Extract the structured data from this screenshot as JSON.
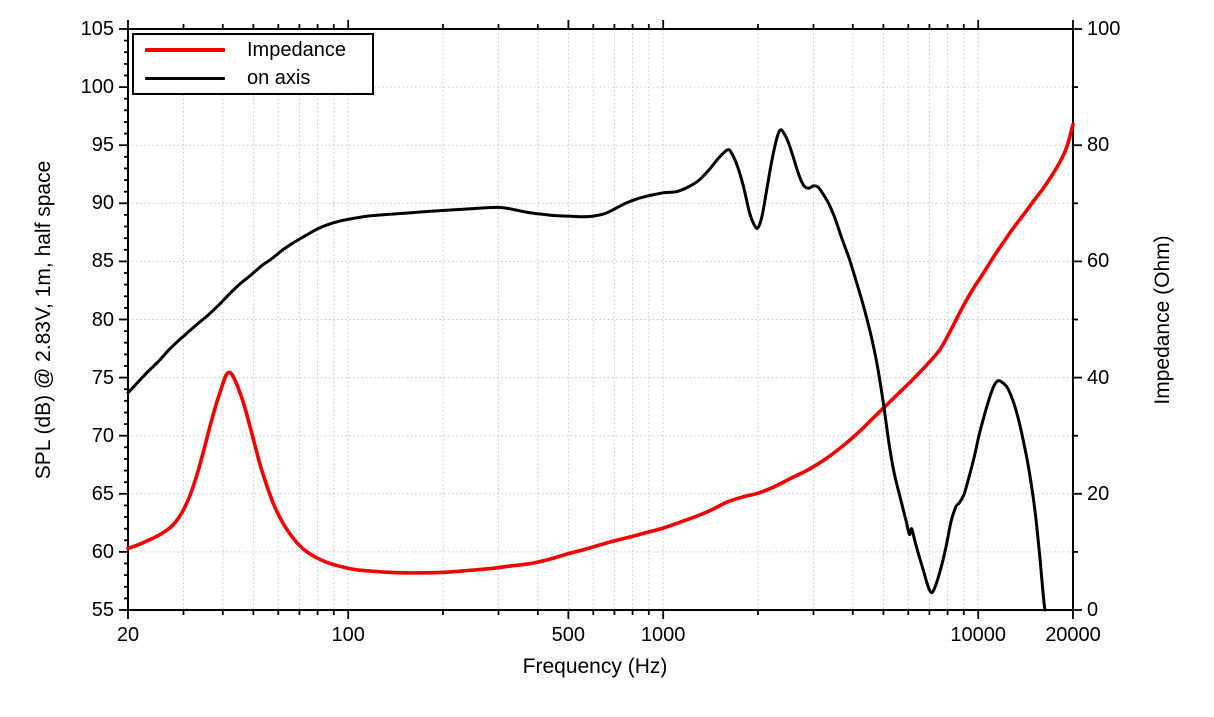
{
  "chart_data": {
    "type": "line",
    "xlabel": "Frequency (Hz)",
    "ylabel_left": "SPL (dB) @ 2.83V, 1m, half space",
    "ylabel_right": "Impedance (Ohm)",
    "x_scale": "log",
    "x_range": [
      20,
      20000
    ],
    "y_left_range": [
      55,
      105
    ],
    "y_right_range": [
      0,
      100
    ],
    "grid": {
      "on": true,
      "color": "#c9c9c9",
      "style": "dotted"
    },
    "x_major_ticks": [
      20,
      100,
      500,
      1000,
      10000,
      20000
    ],
    "x_major_tick_labels": [
      "20",
      "100",
      "500",
      "1000",
      "10000",
      "20000"
    ],
    "x_minor_ticks": [
      30,
      40,
      50,
      60,
      70,
      80,
      90,
      200,
      300,
      400,
      600,
      700,
      800,
      900,
      2000,
      3000,
      4000,
      5000,
      6000,
      7000,
      8000,
      9000
    ],
    "x_gridlines": [
      30,
      40,
      50,
      60,
      70,
      80,
      90,
      100,
      200,
      300,
      400,
      500,
      600,
      700,
      800,
      900,
      1000,
      2000,
      3000,
      4000,
      5000,
      6000,
      7000,
      8000,
      9000,
      10000
    ],
    "y_left_major_ticks": [
      55,
      60,
      65,
      70,
      75,
      80,
      85,
      90,
      95,
      100,
      105
    ],
    "y_left_tick_labels": [
      "55",
      "60",
      "65",
      "70",
      "75",
      "80",
      "85",
      "90",
      "95",
      "100",
      "105"
    ],
    "y_left_minor_step": 1,
    "y_left_gridlines": [
      60,
      65,
      70,
      75,
      80,
      85,
      90,
      95,
      100
    ],
    "y_right_major_ticks": [
      0,
      20,
      40,
      60,
      80,
      100
    ],
    "y_right_tick_labels": [
      "0",
      "20",
      "40",
      "60",
      "80",
      "100"
    ],
    "y_right_minor_step": 10,
    "legend": {
      "position": "top-left",
      "entries": [
        {
          "label": "Impedance",
          "color": "#f40000"
        },
        {
          "label": "on axis",
          "color": "#000000"
        }
      ]
    },
    "series": [
      {
        "name": "Impedance",
        "axis": "right",
        "color": "#f40000",
        "linewidth": 3.6,
        "points": [
          [
            20,
            10.6
          ],
          [
            21.5,
            11.2
          ],
          [
            23,
            11.9
          ],
          [
            24.5,
            12.6
          ],
          [
            26,
            13.4
          ],
          [
            27.5,
            14.4
          ],
          [
            29,
            15.9
          ],
          [
            30.5,
            18.0
          ],
          [
            32,
            20.8
          ],
          [
            33.5,
            24.2
          ],
          [
            35,
            28.0
          ],
          [
            36.5,
            31.8
          ],
          [
            38,
            35.2
          ],
          [
            39.5,
            38.0
          ],
          [
            40.8,
            40.2
          ],
          [
            41.8,
            40.9
          ],
          [
            42.8,
            40.5
          ],
          [
            44,
            39.2
          ],
          [
            45.5,
            37.2
          ],
          [
            47,
            34.8
          ],
          [
            49,
            31.2
          ],
          [
            51,
            27.6
          ],
          [
            53,
            24.3
          ],
          [
            55.5,
            21.0
          ],
          [
            58,
            18.2
          ],
          [
            61,
            15.7
          ],
          [
            64,
            13.8
          ],
          [
            68,
            11.9
          ],
          [
            72,
            10.5
          ],
          [
            77,
            9.4
          ],
          [
            83,
            8.5
          ],
          [
            90,
            7.8
          ],
          [
            98,
            7.3
          ],
          [
            107,
            6.9
          ],
          [
            118,
            6.7
          ],
          [
            132,
            6.5
          ],
          [
            150,
            6.4
          ],
          [
            175,
            6.4
          ],
          [
            205,
            6.5
          ],
          [
            240,
            6.8
          ],
          [
            280,
            7.1
          ],
          [
            330,
            7.6
          ],
          [
            380,
            8.0
          ],
          [
            440,
            8.8
          ],
          [
            500,
            9.7
          ],
          [
            560,
            10.4
          ],
          [
            630,
            11.2
          ],
          [
            700,
            11.9
          ],
          [
            790,
            12.6
          ],
          [
            880,
            13.3
          ],
          [
            1000,
            14.1
          ],
          [
            1130,
            15.1
          ],
          [
            1270,
            16.1
          ],
          [
            1420,
            17.2
          ],
          [
            1600,
            18.6
          ],
          [
            1800,
            19.5
          ],
          [
            2000,
            20.1
          ],
          [
            2250,
            21.2
          ],
          [
            2550,
            22.7
          ],
          [
            2900,
            24.2
          ],
          [
            3300,
            26.1
          ],
          [
            3750,
            28.4
          ],
          [
            4250,
            31.0
          ],
          [
            4800,
            33.8
          ],
          [
            5400,
            36.5
          ],
          [
            6100,
            39.3
          ],
          [
            6900,
            42.3
          ],
          [
            7600,
            45.0
          ],
          [
            8300,
            48.8
          ],
          [
            9000,
            52.5
          ],
          [
            9700,
            55.5
          ],
          [
            10400,
            58.0
          ],
          [
            11200,
            60.8
          ],
          [
            12100,
            63.5
          ],
          [
            13000,
            65.9
          ],
          [
            14000,
            68.2
          ],
          [
            15000,
            70.4
          ],
          [
            16000,
            72.4
          ],
          [
            17000,
            74.5
          ],
          [
            18000,
            76.7
          ],
          [
            18800,
            78.7
          ],
          [
            19400,
            80.8
          ],
          [
            20000,
            83.6
          ]
        ]
      },
      {
        "name": "on axis",
        "axis": "left",
        "color": "#000000",
        "linewidth": 3,
        "points": [
          [
            20,
            73.7
          ],
          [
            21,
            74.3
          ],
          [
            22,
            74.9
          ],
          [
            23.5,
            75.7
          ],
          [
            25,
            76.4
          ],
          [
            27,
            77.4
          ],
          [
            29,
            78.2
          ],
          [
            31,
            78.9
          ],
          [
            33.5,
            79.7
          ],
          [
            36,
            80.4
          ],
          [
            39,
            81.3
          ],
          [
            42,
            82.2
          ],
          [
            45.5,
            83.1
          ],
          [
            49,
            83.8
          ],
          [
            53,
            84.6
          ],
          [
            57,
            85.2
          ],
          [
            62,
            86.0
          ],
          [
            67,
            86.6
          ],
          [
            73,
            87.2
          ],
          [
            80,
            87.8
          ],
          [
            87,
            88.2
          ],
          [
            95,
            88.5
          ],
          [
            104,
            88.7
          ],
          [
            115,
            88.9
          ],
          [
            128,
            89.0
          ],
          [
            143,
            89.1
          ],
          [
            160,
            89.2
          ],
          [
            180,
            89.3
          ],
          [
            205,
            89.4
          ],
          [
            235,
            89.5
          ],
          [
            270,
            89.6
          ],
          [
            300,
            89.65
          ],
          [
            330,
            89.5
          ],
          [
            365,
            89.25
          ],
          [
            400,
            89.1
          ],
          [
            450,
            88.95
          ],
          [
            500,
            88.9
          ],
          [
            550,
            88.85
          ],
          [
            600,
            88.9
          ],
          [
            650,
            89.1
          ],
          [
            700,
            89.5
          ],
          [
            760,
            90.0
          ],
          [
            830,
            90.4
          ],
          [
            900,
            90.65
          ],
          [
            1000,
            90.9
          ],
          [
            1100,
            91.0
          ],
          [
            1200,
            91.4
          ],
          [
            1300,
            92.0
          ],
          [
            1400,
            92.9
          ],
          [
            1500,
            93.9
          ],
          [
            1600,
            94.6
          ],
          [
            1650,
            94.3
          ],
          [
            1720,
            93.2
          ],
          [
            1800,
            91.4
          ],
          [
            1880,
            89.2
          ],
          [
            1950,
            88.1
          ],
          [
            2000,
            87.9
          ],
          [
            2060,
            88.9
          ],
          [
            2130,
            91.1
          ],
          [
            2200,
            93.3
          ],
          [
            2280,
            95.3
          ],
          [
            2350,
            96.3
          ],
          [
            2420,
            96.0
          ],
          [
            2500,
            95.2
          ],
          [
            2600,
            93.8
          ],
          [
            2700,
            92.4
          ],
          [
            2800,
            91.5
          ],
          [
            2900,
            91.3
          ],
          [
            3000,
            91.5
          ],
          [
            3100,
            91.4
          ],
          [
            3200,
            90.9
          ],
          [
            3350,
            90.0
          ],
          [
            3500,
            88.8
          ],
          [
            3700,
            86.9
          ],
          [
            3900,
            85.2
          ],
          [
            4100,
            83.3
          ],
          [
            4350,
            80.9
          ],
          [
            4600,
            78.3
          ],
          [
            4800,
            75.8
          ],
          [
            5000,
            72.8
          ],
          [
            5200,
            69.5
          ],
          [
            5400,
            66.9
          ],
          [
            5700,
            64.3
          ],
          [
            5900,
            62.7
          ],
          [
            6050,
            61.5
          ],
          [
            6150,
            62.0
          ],
          [
            6300,
            60.9
          ],
          [
            6500,
            59.6
          ],
          [
            6700,
            58.4
          ],
          [
            6900,
            57.2
          ],
          [
            7100,
            56.5
          ],
          [
            7300,
            57.0
          ],
          [
            7600,
            58.5
          ],
          [
            7900,
            60.4
          ],
          [
            8200,
            62.6
          ],
          [
            8500,
            63.9
          ],
          [
            8700,
            64.2
          ],
          [
            9000,
            64.9
          ],
          [
            9300,
            66.2
          ],
          [
            9700,
            68.1
          ],
          [
            10100,
            70.2
          ],
          [
            10600,
            72.3
          ],
          [
            11100,
            74.0
          ],
          [
            11500,
            74.7
          ],
          [
            11900,
            74.6
          ],
          [
            12400,
            74.1
          ],
          [
            12900,
            73.0
          ],
          [
            13400,
            71.5
          ],
          [
            13900,
            69.6
          ],
          [
            14400,
            67.5
          ],
          [
            14900,
            65.0
          ],
          [
            15300,
            62.5
          ],
          [
            15700,
            59.5
          ],
          [
            16000,
            57.0
          ],
          [
            16200,
            55.5
          ],
          [
            16300,
            55.0
          ]
        ]
      }
    ]
  },
  "colors": {
    "axis": "#000000",
    "grid": "#c9c9c9",
    "background": "#ffffff"
  }
}
